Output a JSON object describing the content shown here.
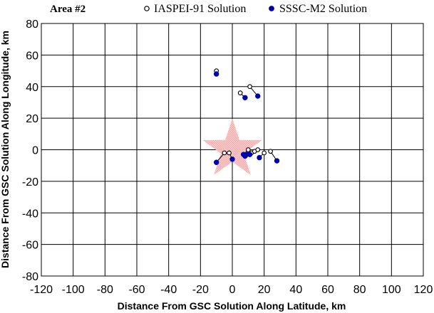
{
  "chart_data": {
    "type": "scatter",
    "area_label": "Area #2",
    "xlabel": "Distance From GSC Solution Along Latitude, km",
    "ylabel": "Distance From GSC Solution Along Longitude, km",
    "xlim": [
      -120,
      120
    ],
    "ylim": [
      -80,
      80
    ],
    "x_ticks": [
      -120,
      -100,
      -80,
      -60,
      -40,
      -20,
      0,
      20,
      40,
      60,
      80,
      100,
      120
    ],
    "y_ticks": [
      -80,
      -60,
      -40,
      -20,
      0,
      20,
      40,
      60,
      80
    ],
    "grid": true,
    "legend_position": "top",
    "reference_marker": {
      "shape": "star",
      "x": 0,
      "y": 0,
      "color": "#f4a6a6"
    },
    "colors": {
      "iaspei": "#000000",
      "sssc": "#0000aa",
      "link": "#000000"
    },
    "series": [
      {
        "name": "IASPEI-91 Solution",
        "marker": "open-circle",
        "points": [
          {
            "x": -10,
            "y": 50
          },
          {
            "x": 5,
            "y": 36
          },
          {
            "x": 11,
            "y": 40
          },
          {
            "x": -5,
            "y": -2
          },
          {
            "x": -2,
            "y": -2
          },
          {
            "x": 10,
            "y": 0
          },
          {
            "x": 12,
            "y": -2
          },
          {
            "x": 14,
            "y": -1
          },
          {
            "x": 16,
            "y": 0
          },
          {
            "x": 20,
            "y": -2
          },
          {
            "x": 24,
            "y": -1
          }
        ]
      },
      {
        "name": "SSSC-M2 Solution",
        "marker": "filled-circle",
        "points": [
          {
            "x": -10,
            "y": 48
          },
          {
            "x": 8,
            "y": 33
          },
          {
            "x": 16,
            "y": 34
          },
          {
            "x": -10,
            "y": -8
          },
          {
            "x": 0,
            "y": -6
          },
          {
            "x": 7,
            "y": -3
          },
          {
            "x": 8,
            "y": -4
          },
          {
            "x": 9,
            "y": -3
          },
          {
            "x": 11,
            "y": -3
          },
          {
            "x": 17,
            "y": -5
          },
          {
            "x": 28,
            "y": -7
          }
        ]
      }
    ]
  }
}
